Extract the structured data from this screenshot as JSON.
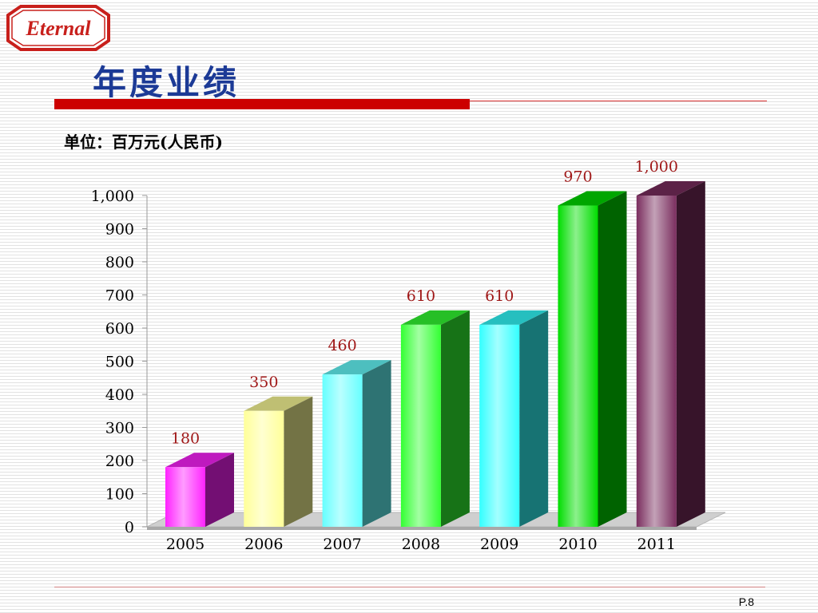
{
  "logo": {
    "text": "Eternal"
  },
  "slide": {
    "title": "年度业绩",
    "unit_label": "单位：百万元(人民币)",
    "page_number": "P.8"
  },
  "colors": {
    "title": "#1c3a96",
    "accent_bar": "#cc0000",
    "data_label": "#a01818"
  },
  "chart_data": {
    "type": "bar",
    "categories": [
      "2005",
      "2006",
      "2007",
      "2008",
      "2009",
      "2010",
      "2011"
    ],
    "values": [
      180,
      350,
      460,
      610,
      610,
      970,
      1000
    ],
    "data_labels": [
      "180",
      "350",
      "460",
      "610",
      "610",
      "970",
      "1,000"
    ],
    "ylim": [
      0,
      1000
    ],
    "yticks": [
      0,
      100,
      200,
      300,
      400,
      500,
      600,
      700,
      800,
      900,
      1000
    ],
    "ytick_labels": [
      "0",
      "100",
      "200",
      "300",
      "400",
      "500",
      "600",
      "700",
      "800",
      "900",
      "1,000"
    ],
    "bar_colors": [
      "#ff22ff",
      "#ffff99",
      "#66ffff",
      "#33ff33",
      "#33ffff",
      "#00dd00",
      "#7a2d5e"
    ],
    "grid": false,
    "legend": "none",
    "style": "3d"
  }
}
